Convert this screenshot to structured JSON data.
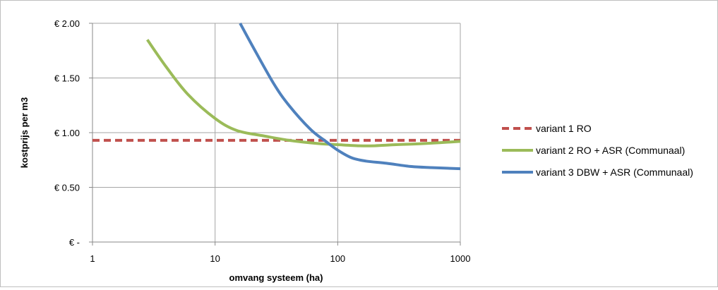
{
  "chart_data": {
    "type": "line",
    "xlabel": "omvang systeem (ha)",
    "ylabel": "kostprijs per m3",
    "x_scale": "log",
    "xlim": [
      1,
      1000
    ],
    "ylim": [
      0,
      2.0
    ],
    "x_ticks": [
      1,
      10,
      100,
      1000
    ],
    "x_tick_labels": [
      "1",
      "10",
      "100",
      "1000"
    ],
    "y_ticks": [
      0,
      0.5,
      1.0,
      1.5,
      2.0
    ],
    "y_tick_labels": [
      "€ -",
      "€ 0.50",
      "€ 1.00",
      "€ 1.50",
      "€ 2.00"
    ],
    "grid": true,
    "legend_position": "right",
    "series": [
      {
        "name": "variant 1 RO",
        "color": "#c0504d",
        "dash": "dashed",
        "points": [
          [
            1.0,
            0.93
          ],
          [
            1000,
            0.93
          ]
        ]
      },
      {
        "name": "variant 2 RO + ASR (Communaal)",
        "color": "#9bbb59",
        "dash": "solid",
        "points": [
          [
            2.8,
            1.85
          ],
          [
            4,
            1.6
          ],
          [
            6,
            1.35
          ],
          [
            10,
            1.13
          ],
          [
            15,
            1.02
          ],
          [
            25,
            0.97
          ],
          [
            40,
            0.93
          ],
          [
            70,
            0.9
          ],
          [
            100,
            0.89
          ],
          [
            150,
            0.88
          ],
          [
            200,
            0.88
          ],
          [
            300,
            0.89
          ],
          [
            500,
            0.9
          ],
          [
            1000,
            0.92
          ]
        ]
      },
      {
        "name": "variant 3 DBW + ASR (Communaal)",
        "color": "#4f81bd",
        "dash": "solid",
        "points": [
          [
            16,
            2.0
          ],
          [
            20,
            1.8
          ],
          [
            30,
            1.45
          ],
          [
            40,
            1.25
          ],
          [
            60,
            1.03
          ],
          [
            80,
            0.92
          ],
          [
            100,
            0.84
          ],
          [
            130,
            0.77
          ],
          [
            170,
            0.74
          ],
          [
            250,
            0.72
          ],
          [
            400,
            0.69
          ],
          [
            600,
            0.68
          ],
          [
            1000,
            0.67
          ]
        ]
      }
    ]
  }
}
